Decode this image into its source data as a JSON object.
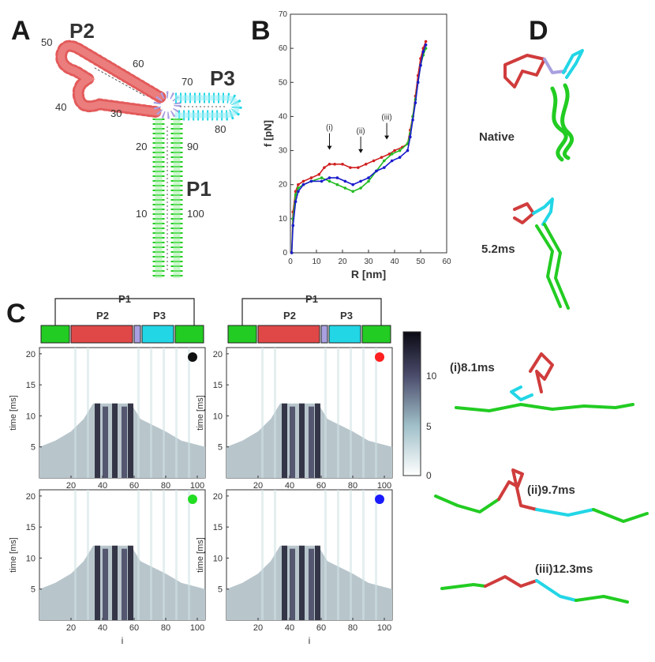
{
  "panels": {
    "A": {
      "letter": "A",
      "helix_labels": [
        "P2",
        "P3",
        "P1"
      ],
      "residue_numbers": [
        "50",
        "60",
        "70",
        "40",
        "30",
        "80",
        "20",
        "90",
        "10",
        "100"
      ]
    },
    "B": {
      "letter": "B"
    },
    "C": {
      "letter": "C",
      "bar_labels": {
        "p1": "P1",
        "p2": "P2",
        "p3": "P3"
      },
      "ylabel": "time [ms]",
      "xlabel": "i",
      "x_ticks": [
        "20",
        "40",
        "60",
        "80",
        "100"
      ],
      "y_ticks": [
        "5",
        "10",
        "15",
        "20"
      ],
      "colorbar_ticks": [
        "0",
        "5",
        "10"
      ],
      "markers": [
        {
          "color": "#111111"
        },
        {
          "color": "#ff2020"
        },
        {
          "color": "#22dd22"
        },
        {
          "color": "#1a1aff"
        }
      ]
    },
    "D": {
      "letter": "D",
      "snapshots": [
        "Native",
        "5.2ms",
        "(i)8.1ms",
        "(ii)9.7ms",
        "(iii)12.3ms"
      ]
    }
  },
  "colors": {
    "P1": "#22cc22",
    "P2": "#e04848",
    "P3": "#22d6e6",
    "junction": "#a8a0e0"
  },
  "chart_data": {
    "type": "line",
    "xlabel": "R [nm]",
    "ylabel": "f [pN]",
    "xlim": [
      0,
      60
    ],
    "ylim": [
      0,
      70
    ],
    "x_ticks": [
      0,
      10,
      20,
      30,
      40,
      50,
      60
    ],
    "y_ticks": [
      0,
      10,
      20,
      30,
      40,
      50,
      60,
      70
    ],
    "annotations": [
      {
        "text": "(i)",
        "x": 15,
        "y": 30
      },
      {
        "text": "(ii)",
        "x": 27,
        "y": 29
      },
      {
        "text": "(iii)",
        "x": 37,
        "y": 33
      }
    ],
    "series": [
      {
        "color": "#d02020",
        "x": [
          0.5,
          1,
          2,
          3,
          5,
          8,
          11,
          13,
          15,
          17,
          20,
          23,
          26,
          29,
          32,
          35,
          38,
          40,
          43,
          45,
          46,
          47,
          48,
          49,
          50,
          51,
          52
        ],
        "y": [
          0,
          12,
          18,
          20,
          21,
          22,
          23,
          25,
          26,
          26,
          26,
          25,
          25,
          26,
          27,
          28,
          29,
          30,
          31,
          32,
          36,
          40,
          46,
          52,
          57,
          60,
          62
        ]
      },
      {
        "color": "#22bb22",
        "x": [
          0.5,
          1,
          2,
          3,
          5,
          8,
          12,
          15,
          18,
          21,
          24,
          27,
          30,
          33,
          36,
          39,
          42,
          45,
          46,
          47,
          48,
          49,
          50,
          51,
          52
        ],
        "y": [
          0,
          10,
          17,
          19,
          20,
          21,
          22,
          21,
          20,
          19,
          18,
          19,
          21,
          24,
          27,
          29,
          30,
          32,
          35,
          40,
          45,
          50,
          55,
          58,
          60
        ]
      },
      {
        "color": "#1a1acc",
        "x": [
          0.5,
          1,
          2,
          3,
          5,
          8,
          12,
          15,
          18,
          21,
          24,
          27,
          30,
          33,
          36,
          39,
          42,
          45,
          46,
          47,
          48,
          49,
          50,
          51,
          52
        ],
        "y": [
          0,
          8,
          15,
          18,
          20,
          21,
          21,
          22,
          22,
          21,
          20,
          21,
          22,
          24,
          25,
          27,
          28,
          30,
          34,
          39,
          44,
          50,
          55,
          59,
          61
        ]
      }
    ]
  }
}
